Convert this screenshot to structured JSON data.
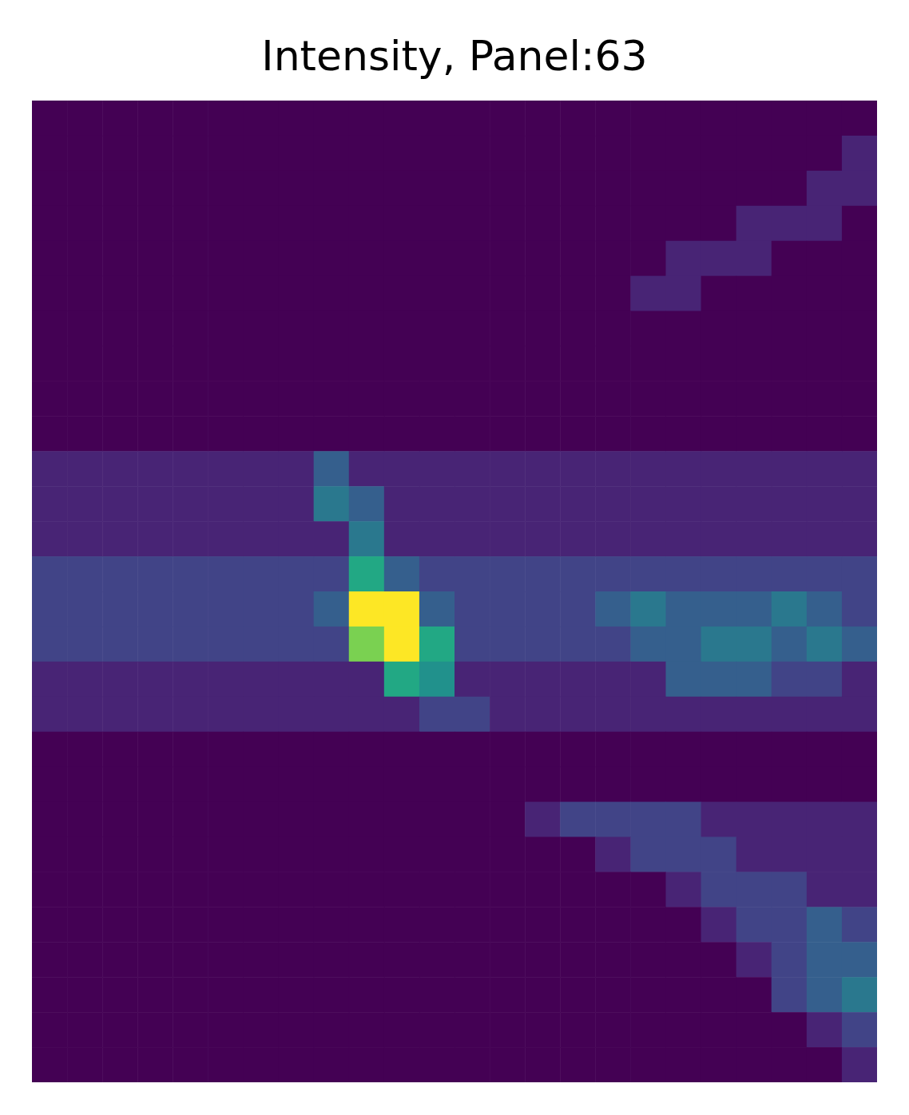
{
  "chart_data": {
    "type": "heatmap",
    "title": "Intensity, Panel:63",
    "tick_labels": false,
    "zlim": [
      0,
      10
    ],
    "cells": [
      [
        0,
        0,
        0,
        0,
        0,
        0,
        0,
        0,
        0,
        0,
        0,
        0,
        0,
        0,
        0,
        0,
        0,
        0,
        0,
        0,
        0,
        0,
        0,
        0
      ],
      [
        0,
        0,
        0,
        0,
        0,
        0,
        0,
        0,
        0,
        0,
        0,
        0,
        0,
        0,
        0,
        0,
        0,
        0,
        0,
        0,
        0,
        0,
        0,
        1
      ],
      [
        0,
        0,
        0,
        0,
        0,
        0,
        0,
        0,
        0,
        0,
        0,
        0,
        0,
        0,
        0,
        0,
        0,
        0,
        0,
        0,
        0,
        0,
        1,
        1
      ],
      [
        0,
        0,
        0,
        0,
        0,
        0,
        0,
        0,
        0,
        0,
        0,
        0,
        0,
        0,
        0,
        0,
        0,
        0,
        0,
        0,
        1,
        1,
        1,
        0
      ],
      [
        0,
        0,
        0,
        0,
        0,
        0,
        0,
        0,
        0,
        0,
        0,
        0,
        0,
        0,
        0,
        0,
        0,
        0,
        1,
        1,
        1,
        0,
        0,
        0
      ],
      [
        0,
        0,
        0,
        0,
        0,
        0,
        0,
        0,
        0,
        0,
        0,
        0,
        0,
        0,
        0,
        0,
        0,
        1,
        1,
        0,
        0,
        0,
        0,
        0
      ],
      [
        0,
        0,
        0,
        0,
        0,
        0,
        0,
        0,
        0,
        0,
        0,
        0,
        0,
        0,
        0,
        0,
        0,
        0,
        0,
        0,
        0,
        0,
        0,
        0
      ],
      [
        0,
        0,
        0,
        0,
        0,
        0,
        0,
        0,
        0,
        0,
        0,
        0,
        0,
        0,
        0,
        0,
        0,
        0,
        0,
        0,
        0,
        0,
        0,
        0
      ],
      [
        0,
        0,
        0,
        0,
        0,
        0,
        0,
        0,
        0,
        0,
        0,
        0,
        0,
        0,
        0,
        0,
        0,
        0,
        0,
        0,
        0,
        0,
        0,
        0
      ],
      [
        0,
        0,
        0,
        0,
        0,
        0,
        0,
        0,
        0,
        0,
        0,
        0,
        0,
        0,
        0,
        0,
        0,
        0,
        0,
        0,
        0,
        0,
        0,
        0
      ],
      [
        1,
        1,
        1,
        1,
        1,
        1,
        1,
        1,
        3,
        1,
        1,
        1,
        1,
        1,
        1,
        1,
        1,
        1,
        1,
        1,
        1,
        1,
        1,
        1
      ],
      [
        1,
        1,
        1,
        1,
        1,
        1,
        1,
        1,
        4,
        3,
        1,
        1,
        1,
        1,
        1,
        1,
        1,
        1,
        1,
        1,
        1,
        1,
        1,
        1
      ],
      [
        1,
        1,
        1,
        1,
        1,
        1,
        1,
        1,
        1,
        4,
        1,
        1,
        1,
        1,
        1,
        1,
        1,
        1,
        1,
        1,
        1,
        1,
        1,
        1
      ],
      [
        2,
        2,
        2,
        2,
        2,
        2,
        2,
        2,
        2,
        6,
        3,
        2,
        2,
        2,
        2,
        2,
        2,
        2,
        2,
        2,
        2,
        2,
        2,
        2
      ],
      [
        2,
        2,
        2,
        2,
        2,
        2,
        2,
        2,
        3,
        10,
        10,
        3,
        2,
        2,
        2,
        2,
        3,
        4,
        3,
        3,
        3,
        4,
        3,
        2
      ],
      [
        2,
        2,
        2,
        2,
        2,
        2,
        2,
        2,
        2,
        8,
        10,
        6,
        2,
        2,
        2,
        2,
        2,
        3,
        3,
        4,
        4,
        3,
        4,
        3
      ],
      [
        1,
        1,
        1,
        1,
        1,
        1,
        1,
        1,
        1,
        1,
        6,
        5,
        1,
        1,
        1,
        1,
        1,
        1,
        3,
        3,
        3,
        2,
        2,
        1
      ],
      [
        1,
        1,
        1,
        1,
        1,
        1,
        1,
        1,
        1,
        1,
        1,
        2,
        2,
        1,
        1,
        1,
        1,
        1,
        1,
        1,
        1,
        1,
        1,
        1
      ],
      [
        0,
        0,
        0,
        0,
        0,
        0,
        0,
        0,
        0,
        0,
        0,
        0,
        0,
        0,
        0,
        0,
        0,
        0,
        0,
        0,
        0,
        0,
        0,
        0
      ],
      [
        0,
        0,
        0,
        0,
        0,
        0,
        0,
        0,
        0,
        0,
        0,
        0,
        0,
        0,
        0,
        0,
        0,
        0,
        0,
        0,
        0,
        0,
        0,
        0
      ],
      [
        0,
        0,
        0,
        0,
        0,
        0,
        0,
        0,
        0,
        0,
        0,
        0,
        0,
        0,
        1,
        2,
        2,
        2,
        2,
        1,
        1,
        1,
        1,
        1
      ],
      [
        0,
        0,
        0,
        0,
        0,
        0,
        0,
        0,
        0,
        0,
        0,
        0,
        0,
        0,
        0,
        0,
        1,
        2,
        2,
        2,
        1,
        1,
        1,
        1
      ],
      [
        0,
        0,
        0,
        0,
        0,
        0,
        0,
        0,
        0,
        0,
        0,
        0,
        0,
        0,
        0,
        0,
        0,
        0,
        1,
        2,
        2,
        2,
        1,
        1
      ],
      [
        0,
        0,
        0,
        0,
        0,
        0,
        0,
        0,
        0,
        0,
        0,
        0,
        0,
        0,
        0,
        0,
        0,
        0,
        0,
        1,
        2,
        2,
        3,
        2
      ],
      [
        0,
        0,
        0,
        0,
        0,
        0,
        0,
        0,
        0,
        0,
        0,
        0,
        0,
        0,
        0,
        0,
        0,
        0,
        0,
        0,
        1,
        2,
        3,
        3
      ],
      [
        0,
        0,
        0,
        0,
        0,
        0,
        0,
        0,
        0,
        0,
        0,
        0,
        0,
        0,
        0,
        0,
        0,
        0,
        0,
        0,
        0,
        2,
        3,
        4
      ],
      [
        0,
        0,
        0,
        0,
        0,
        0,
        0,
        0,
        0,
        0,
        0,
        0,
        0,
        0,
        0,
        0,
        0,
        0,
        0,
        0,
        0,
        0,
        1,
        2
      ],
      [
        0,
        0,
        0,
        0,
        0,
        0,
        0,
        0,
        0,
        0,
        0,
        0,
        0,
        0,
        0,
        0,
        0,
        0,
        0,
        0,
        0,
        0,
        0,
        1
      ]
    ]
  }
}
